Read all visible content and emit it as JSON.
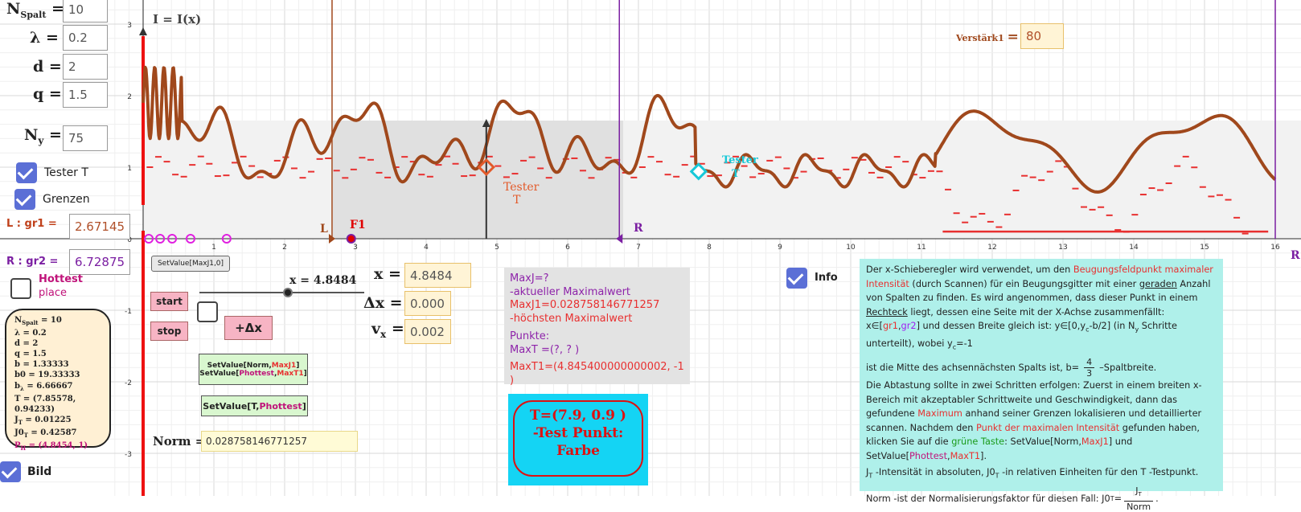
{
  "graph": {
    "title": "I = I(x)",
    "y_ticks": [
      "3",
      "2",
      "1",
      "0",
      "-1",
      "-2",
      "-3"
    ],
    "x_ticks": [
      "1",
      "2",
      "3",
      "4",
      "5",
      "6",
      "7",
      "8",
      "9",
      "10",
      "11",
      "12",
      "13",
      "14",
      "15",
      "16"
    ],
    "label_L": "L",
    "label_F1": "F1",
    "label_R": "R",
    "label_R2": "R",
    "tester_label_1": "Tester",
    "tester_label_2": "T",
    "tester_label_cyan_1": "Tester",
    "tester_label_cyan_2": "T",
    "x_slider_label": "x = 4.8484",
    "colors": {
      "curve": "#a0481c",
      "red": "#e83030",
      "purple": "#7b1fa2",
      "cyan": "#17c8d8",
      "axis_red": "#ee1111"
    }
  },
  "params": {
    "nspalt_label": "N",
    "nspalt_sub": "Spalt",
    "nspalt_value": "10",
    "lambda_label": "λ",
    "lambda_value": "0.2",
    "d_label": "d",
    "d_value": "2",
    "q_label": "q",
    "q_value": "1.5",
    "ny_label": "N",
    "ny_sub": "y",
    "ny_value": "75",
    "eq": "="
  },
  "checkboxes": {
    "tester_t": "Tester T",
    "grenzen": "Grenzen",
    "hottest_1": "Hottest",
    "hottest_2": "place",
    "bild": "Bild",
    "info": "Info"
  },
  "bounds": {
    "l_label": "L :  gr1 =",
    "l_value": "2.67145",
    "r_label": "R :  gr2 =",
    "r_value": "6.72875"
  },
  "buttons": {
    "setvalue_maxj1": "SetValue[MaxJ1,0]",
    "start": "start",
    "stop": "stop",
    "plus_dx": "+Δx",
    "setvalue_norm_1": "SetValue[Norm,",
    "setvalue_norm_2": "MaxJ1",
    "setvalue_norm_3": "]",
    "setvalue_ph_1": "SetValue[",
    "setvalue_ph_2": "Phottest",
    "setvalue_ph_3": ",",
    "setvalue_ph_4": "MaxT1",
    "setvalue_ph_5": "]",
    "setvalue_t_1": "SetValue[T,",
    "setvalue_t_2": "Phottest",
    "setvalue_t_3": "]"
  },
  "fields": {
    "x_label": "x =",
    "x_value": "4.8484",
    "dx_label": "Δx =",
    "dx_value": "0.0002",
    "vx_label": "v",
    "vx_sub": "x",
    "vx_value": "0.002",
    "norm_label": "Norm =",
    "norm_value": "0.028758146771257",
    "verstark_label": "Verstärk1",
    "verstark_value": "80"
  },
  "summary": [
    {
      "k": "N",
      "sub": "Spalt",
      "v": " = 10"
    },
    {
      "k": "λ",
      "sub": "",
      "v": " = 0.2"
    },
    {
      "k": "d",
      "sub": "",
      "v": " = 2"
    },
    {
      "k": "q",
      "sub": "",
      "v": " = 1.5"
    },
    {
      "k": "b",
      "sub": "",
      "v": " = 1.33333"
    },
    {
      "k": "b0",
      "sub": "",
      "v": " = 19.33333"
    },
    {
      "k": "b",
      "sub": "λ",
      "v": " = 6.66667"
    },
    {
      "k": "T",
      "sub": "",
      "v": " = (7.85578, 0.94233)"
    },
    {
      "k": "J",
      "sub": "T",
      "v": "  = 0.01225"
    },
    {
      "k": "J0",
      "sub": "T",
      "v": " = 0.42587"
    },
    {
      "k": "P",
      "sub": "H",
      "v": " = (4.8454, 1)"
    }
  ],
  "maxbox": {
    "l1": "MaxJ=?",
    "l2": "-aktueller  Maximalwert",
    "l3": "MaxJ1=0.028758146771257",
    "l4": "-höchsten Maximalwert",
    "l5": "Punkte:",
    "l6": "MaxT =(?, ? )",
    "l7": "MaxT1=(4.845400000000002, -1 )"
  },
  "tbox": {
    "l1": "T=(7.9, 0.9 )",
    "l2": "-Test Punkt:",
    "l3": "Farbe"
  },
  "info": {
    "p1a": "Der x-Schieberegler wird verwendet, um den ",
    "p1b": "Beugungsfeldpunkt maximaler Intensität",
    "p1c": " (durch Scannen) für ein Beugungsgitter mit einer ",
    "p1d": "geraden",
    "p1e": " Anzahl von Spalten zu finden. Es wird angenommen, dass dieser Punkt in einem ",
    "p1f": "Rechteck",
    "p1g": " liegt, dessen eine Seite mit der X-Achse zusammenfällt: x∈[",
    "p1h": "gr1",
    "p1i": ",",
    "p1j": "gr2",
    "p1k": "] und dessen Breite gleich ist: y∈[0,y",
    "p1l": "c",
    "p1m": "-b/2]  (in N",
    "p1n": "y",
    "p1o": " Schritte unterteilt), wobei y",
    "p1p": "c",
    "p1q": "=-1",
    "p2a": "ist die Mitte des achsennächsten Spalts ist, b=",
    "p2num": "4",
    "p2den": "3",
    "p2b": " –Spaltbreite.",
    "p3a": "Die Abtastung sollte in zwei Schritten erfolgen: Zuerst in einem breiten x-Bereich mit akzeptabler Schrittweite und Geschwindigkeit, dann das gefundene ",
    "p3b": "Maximum",
    "p3c": " anhand seiner Grenzen lokalisieren und detaillierter scannen. Nachdem den ",
    "p3d": "Punkt der maximalen Intensität",
    "p3e": " gefunden haben, klicken Sie auf die ",
    "p3f": "grüne Taste",
    "p3g": ": SetValue[Norm,",
    "p3h": "MaxJ1",
    "p3i": "] und SetValue[",
    "p3j": "Phottest",
    "p3k": ",",
    "p3l": "MaxT1",
    "p3m": "].",
    "p4a": "J",
    "p4b": "T",
    "p4c": " -Intensität in absoluten, J0",
    "p4d": "T",
    "p4e": " -in relativen Einheiten für den T -Testpunkt.",
    "p5a": "Norm -ist der Normalisierungsfaktor für diesen Fall: J0",
    "p5b": "T",
    "p5c": " = ",
    "p5num": "J",
    "p5numsub": "T",
    "p5den": "Norm",
    "p5d": "."
  }
}
